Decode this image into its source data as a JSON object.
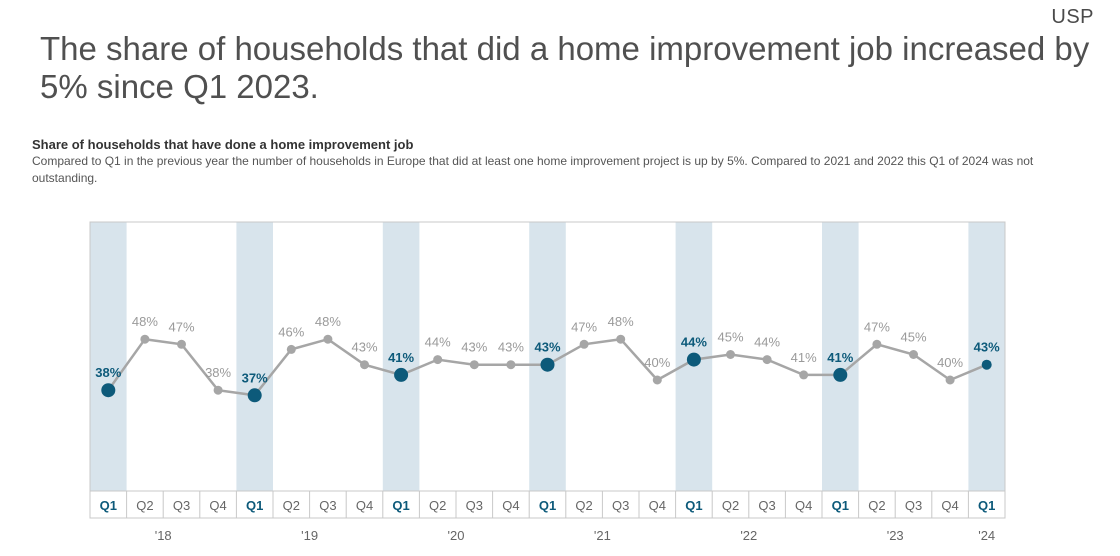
{
  "logo": "USP",
  "headline": "The share of households that did a home improvement job increased by 5% since Q1 2023.",
  "subtitle": "Share of households that have done a home improvement job",
  "description": "Compared to Q1 in the previous year the number of households in Europe that did at least one home improvement project is up by 5%. Compared to 2021 and 2022 this Q1 of 2024 was not outstanding.",
  "colors": {
    "highlight": "#0d5a7a",
    "normal": "#a6a6a6",
    "band": "#d8e4ec"
  },
  "chart_data": {
    "type": "line",
    "title": "Share of households that have done a home improvement job",
    "categories": [
      "Q1",
      "Q2",
      "Q3",
      "Q4",
      "Q1",
      "Q2",
      "Q3",
      "Q4",
      "Q1",
      "Q2",
      "Q3",
      "Q4",
      "Q1",
      "Q2",
      "Q3",
      "Q4",
      "Q1",
      "Q2",
      "Q3",
      "Q4",
      "Q1",
      "Q2",
      "Q3",
      "Q4",
      "Q1"
    ],
    "years": [
      {
        "label": "'18",
        "start": 0,
        "end": 3
      },
      {
        "label": "'19",
        "start": 4,
        "end": 7
      },
      {
        "label": "'20",
        "start": 8,
        "end": 11
      },
      {
        "label": "'21",
        "start": 12,
        "end": 15
      },
      {
        "label": "'22",
        "start": 16,
        "end": 19
      },
      {
        "label": "'23",
        "start": 20,
        "end": 23
      },
      {
        "label": "'24",
        "start": 24,
        "end": 24
      }
    ],
    "series": [
      {
        "values": [
          38,
          48,
          47,
          38,
          37,
          46,
          48,
          43,
          41,
          44,
          43,
          43,
          43,
          47,
          48,
          40,
          44,
          45,
          44,
          41,
          41,
          47,
          45,
          40,
          43
        ],
        "labels": [
          "38%",
          "48%",
          "47%",
          "38%",
          "37%",
          "46%",
          "48%",
          "43%",
          "41%",
          "44%",
          "43%",
          "43%",
          "43%",
          "47%",
          "48%",
          "40%",
          "44%",
          "45%",
          "44%",
          "41%",
          "41%",
          "47%",
          "45%",
          "40%",
          "43%"
        ]
      }
    ],
    "highlight_quarter": "Q1",
    "grid": false
  }
}
